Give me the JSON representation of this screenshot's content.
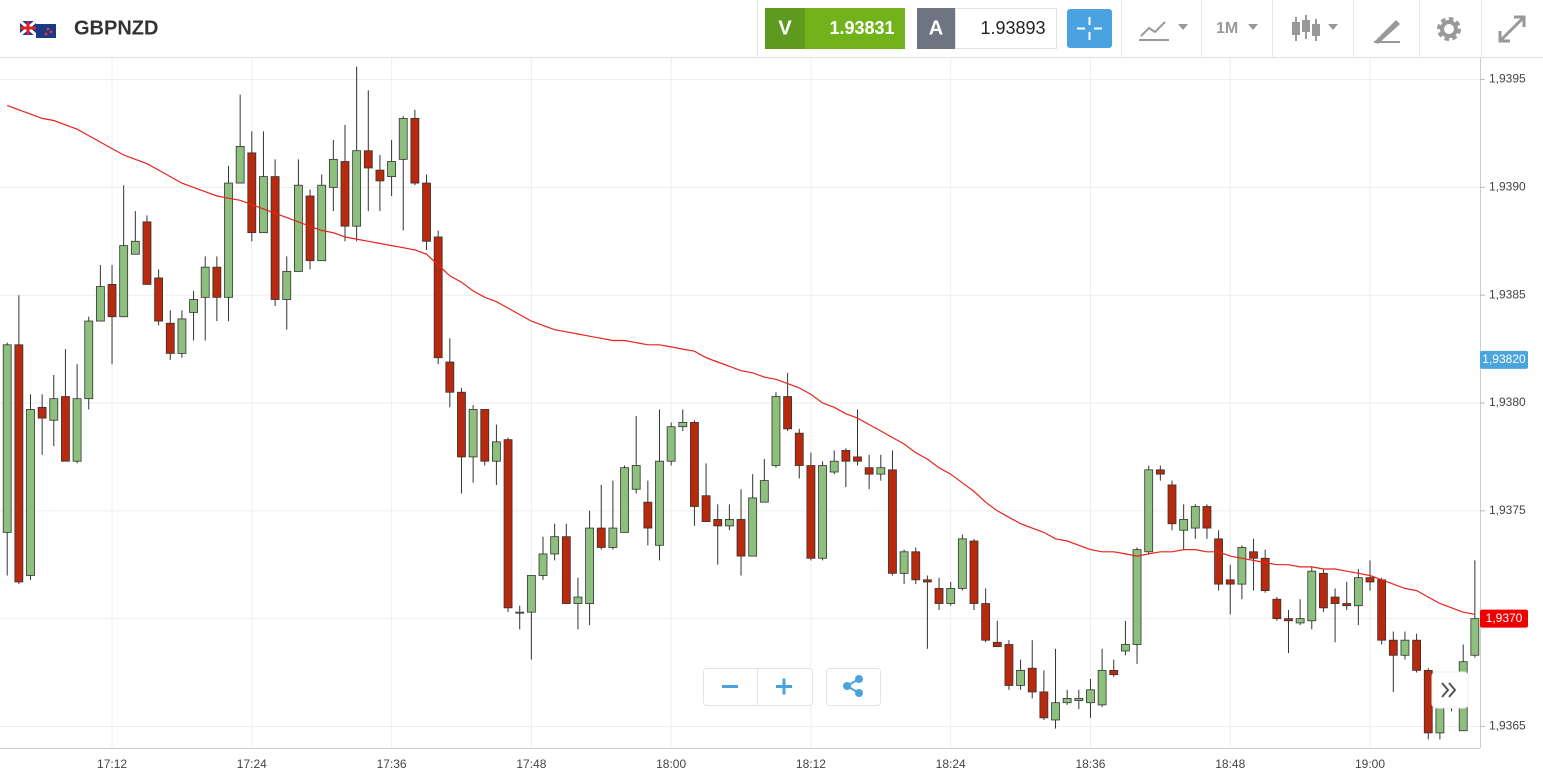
{
  "toolbar": {
    "symbol": "GBPNZD",
    "sell_label": "V",
    "sell_price": "1.93831",
    "buy_label": "A",
    "buy_price": "1.93893",
    "timeframe": "1M"
  },
  "chart_data": {
    "type": "candlestick",
    "categories": [
      null,
      null,
      null,
      null,
      null,
      null,
      null,
      null,
      null,
      "17:12",
      null,
      null,
      null,
      null,
      null,
      null,
      null,
      null,
      null,
      null,
      null,
      "17:24",
      null,
      null,
      null,
      null,
      null,
      null,
      null,
      null,
      null,
      null,
      null,
      "17:36",
      null,
      null,
      null,
      null,
      null,
      null,
      null,
      null,
      null,
      null,
      null,
      "17:48",
      null,
      null,
      null,
      null,
      null,
      null,
      null,
      null,
      null,
      null,
      null,
      "18:00",
      null,
      null,
      null,
      null,
      null,
      null,
      null,
      null,
      null,
      null,
      null,
      "18:12",
      null,
      null,
      null,
      null,
      null,
      null,
      null,
      null,
      null,
      null,
      null,
      "18:24",
      null,
      null,
      null,
      null,
      null,
      null,
      null,
      null,
      null,
      null,
      null,
      "18:36",
      null,
      null,
      null,
      null,
      null,
      null,
      null,
      null,
      null,
      null,
      null,
      "18:48",
      null,
      null,
      null,
      null,
      null,
      null,
      null,
      null,
      null,
      null,
      null,
      "19:00",
      null,
      null,
      null,
      null,
      null,
      null,
      null,
      null,
      null
    ],
    "open": [
      1.9374,
      1.93827,
      1.9372,
      1.93798,
      1.93792,
      1.93803,
      1.93773,
      1.93802,
      1.93838,
      1.93855,
      1.9384,
      1.93869,
      1.93884,
      1.93858,
      1.93837,
      1.93823,
      1.93842,
      1.93849,
      1.93863,
      1.93849,
      1.93902,
      1.93916,
      1.93879,
      1.93905,
      1.93848,
      1.93861,
      1.93896,
      1.93866,
      1.939,
      1.93912,
      1.93882,
      1.93917,
      1.93908,
      1.93905,
      1.93913,
      1.93932,
      1.93902,
      1.93877,
      1.93819,
      1.93805,
      1.93775,
      1.93797,
      1.93773,
      1.93783,
      1.93703,
      1.93703,
      1.9372,
      1.9373,
      1.93738,
      1.93707,
      1.93707,
      1.93742,
      1.93733,
      1.9374,
      1.9376,
      1.93754,
      1.93734,
      1.93773,
      1.93789,
      1.93791,
      1.93757,
      1.93746,
      1.93743,
      1.93746,
      1.93729,
      1.93754,
      1.93771,
      1.93803,
      1.93786,
      1.93771,
      1.93728,
      1.93768,
      1.93778,
      1.93775,
      1.9377,
      1.93767,
      1.93769,
      1.93721,
      1.93731,
      1.93718,
      1.93714,
      1.93707,
      1.93714,
      1.93736,
      1.93707,
      1.93689,
      1.93688,
      1.93669,
      1.93677,
      1.93666,
      1.93653,
      1.93661,
      1.93662,
      1.93661,
      1.9366,
      1.93676,
      1.93685,
      1.93688,
      1.93731,
      1.93769,
      1.93762,
      1.93741,
      1.93742,
      1.93752,
      1.93737,
      1.93718,
      1.93716,
      1.93731,
      1.93728,
      1.93709,
      1.937,
      1.93698,
      1.93699,
      1.93721,
      1.9371,
      1.93707,
      1.93706,
      1.93719,
      1.93718,
      1.9369,
      1.93683,
      1.9369,
      1.93676,
      1.93647,
      1.93661,
      1.93648,
      1.93683
    ],
    "high": [
      1.93828,
      1.9385,
      1.93804,
      1.93804,
      1.93813,
      1.93825,
      1.93818,
      1.9384,
      1.93864,
      1.93864,
      1.93901,
      1.93889,
      1.93887,
      1.93862,
      1.93843,
      1.93843,
      1.93852,
      1.93868,
      1.93868,
      1.9391,
      1.93943,
      1.93926,
      1.93926,
      1.93913,
      1.93868,
      1.93913,
      1.93899,
      1.93906,
      1.93922,
      1.93929,
      1.93956,
      1.93945,
      1.93915,
      1.93922,
      1.93933,
      1.93936,
      1.93906,
      1.9388,
      1.9383,
      1.93807,
      1.93799,
      1.93797,
      1.9379,
      1.93784,
      1.93706,
      1.9372,
      1.93738,
      1.93744,
      1.93744,
      1.93719,
      1.9375,
      1.93762,
      1.93764,
      1.93771,
      1.93794,
      1.93764,
      1.93797,
      1.93791,
      1.93797,
      1.93792,
      1.93772,
      1.93753,
      1.93753,
      1.9376,
      1.93767,
      1.93774,
      1.93805,
      1.93814,
      1.93788,
      1.93777,
      1.93773,
      1.93778,
      1.93779,
      1.93797,
      1.93776,
      1.93776,
      1.93778,
      1.93732,
      1.93733,
      1.9372,
      1.93719,
      1.93717,
      1.93739,
      1.93737,
      1.93714,
      1.93699,
      1.9369,
      1.93681,
      1.9369,
      1.93676,
      1.93686,
      1.93667,
      1.93667,
      1.93672,
      1.93686,
      1.93681,
      1.93699,
      1.93733,
      1.93771,
      1.93771,
      1.93764,
      1.93753,
      1.93753,
      1.93753,
      1.93741,
      1.93725,
      1.93734,
      1.93737,
      1.93732,
      1.9371,
      1.93704,
      1.93709,
      1.93724,
      1.93723,
      1.93714,
      1.93717,
      1.93723,
      1.93727,
      1.93719,
      1.93694,
      1.93694,
      1.93693,
      1.93677,
      1.93665,
      1.93674,
      1.93688,
      1.93727
    ],
    "low": [
      1.9372,
      1.93716,
      1.93718,
      1.93776,
      1.9378,
      1.93773,
      1.93772,
      1.93797,
      1.93838,
      1.93818,
      1.9384,
      1.93869,
      1.93855,
      1.93836,
      1.9382,
      1.93821,
      1.93829,
      1.93829,
      1.93838,
      1.93838,
      1.93902,
      1.93875,
      1.93879,
      1.93845,
      1.93834,
      1.93861,
      1.93862,
      1.93866,
      1.93889,
      1.93875,
      1.93875,
      1.93889,
      1.93889,
      1.93896,
      1.9388,
      1.93901,
      1.93871,
      1.93818,
      1.93798,
      1.93758,
      1.93763,
      1.93771,
      1.93762,
      1.93703,
      1.93695,
      1.93681,
      1.93718,
      1.93727,
      1.93707,
      1.93695,
      1.93697,
      1.93732,
      1.93732,
      1.9374,
      1.93758,
      1.93734,
      1.93727,
      1.93771,
      1.93787,
      1.93743,
      1.93745,
      1.93725,
      1.93741,
      1.9372,
      1.93729,
      1.93754,
      1.9377,
      1.93787,
      1.93765,
      1.93727,
      1.93727,
      1.93767,
      1.93761,
      1.93771,
      1.9376,
      1.93764,
      1.9372,
      1.93716,
      1.93716,
      1.93686,
      1.93704,
      1.93706,
      1.93713,
      1.93704,
      1.93689,
      1.93687,
      1.93667,
      1.93667,
      1.93663,
      1.93653,
      1.93649,
      1.9366,
      1.93658,
      1.93654,
      1.93659,
      1.93673,
      1.93683,
      1.93679,
      1.9373,
      1.93764,
      1.93741,
      1.93732,
      1.93737,
      1.93737,
      1.93713,
      1.93702,
      1.93709,
      1.93713,
      1.93712,
      1.93699,
      1.93684,
      1.93697,
      1.93695,
      1.93703,
      1.93689,
      1.93704,
      1.93697,
      1.93713,
      1.93688,
      1.93666,
      1.93681,
      1.93675,
      1.93644,
      1.93644,
      1.93657,
      1.93648,
      1.93682
    ],
    "close": [
      1.93827,
      1.93717,
      1.93797,
      1.93793,
      1.93802,
      1.93773,
      1.93802,
      1.93838,
      1.93854,
      1.9384,
      1.93873,
      1.93875,
      1.93855,
      1.93838,
      1.93823,
      1.93839,
      1.93848,
      1.93863,
      1.93849,
      1.93902,
      1.93919,
      1.93879,
      1.93905,
      1.93848,
      1.93861,
      1.93901,
      1.93866,
      1.93901,
      1.93913,
      1.93882,
      1.93917,
      1.93909,
      1.93903,
      1.93912,
      1.93932,
      1.93902,
      1.93875,
      1.93821,
      1.93805,
      1.93775,
      1.93797,
      1.93773,
      1.93782,
      1.93705,
      1.93703,
      1.9372,
      1.9373,
      1.93738,
      1.93707,
      1.9371,
      1.93742,
      1.93733,
      1.93742,
      1.9377,
      1.93771,
      1.93742,
      1.93773,
      1.93789,
      1.93791,
      1.93752,
      1.93745,
      1.93743,
      1.93746,
      1.93729,
      1.93756,
      1.93764,
      1.93803,
      1.93788,
      1.93771,
      1.93728,
      1.93771,
      1.93773,
      1.93773,
      1.93773,
      1.93767,
      1.9377,
      1.93721,
      1.93731,
      1.93718,
      1.93717,
      1.93707,
      1.93714,
      1.93737,
      1.93707,
      1.9369,
      1.93687,
      1.93669,
      1.93676,
      1.93666,
      1.93654,
      1.93661,
      1.93663,
      1.93663,
      1.93667,
      1.93676,
      1.93674,
      1.93688,
      1.93732,
      1.93769,
      1.93767,
      1.93744,
      1.93746,
      1.93752,
      1.93742,
      1.93716,
      1.93716,
      1.93733,
      1.93728,
      1.93713,
      1.937,
      1.93699,
      1.937,
      1.93722,
      1.93705,
      1.93707,
      1.93706,
      1.93719,
      1.93717,
      1.9369,
      1.93683,
      1.9369,
      1.93676,
      1.93647,
      1.9366,
      1.93671,
      1.9368,
      1.937
    ],
    "up_color": "#8cc07c",
    "down_color": "#b8290e",
    "ma": {
      "color": "#e8231b",
      "values": [
        1.93938,
        1.93936,
        1.93934,
        1.93932,
        1.93931,
        1.93929,
        1.93927,
        1.93924,
        1.93921,
        1.93918,
        1.93915,
        1.93913,
        1.93911,
        1.93908,
        1.93905,
        1.93902,
        1.939,
        1.93898,
        1.93896,
        1.93895,
        1.93894,
        1.93892,
        1.9389,
        1.93888,
        1.93886,
        1.93884,
        1.93882,
        1.9388,
        1.93879,
        1.93877,
        1.93876,
        1.93875,
        1.93874,
        1.93873,
        1.93872,
        1.93871,
        1.93869,
        1.93864,
        1.93859,
        1.93856,
        1.93852,
        1.93849,
        1.93847,
        1.93844,
        1.93841,
        1.93838,
        1.93836,
        1.93834,
        1.93833,
        1.93832,
        1.93831,
        1.9383,
        1.93829,
        1.93829,
        1.93828,
        1.93827,
        1.93827,
        1.93826,
        1.93825,
        1.93824,
        1.93821,
        1.93819,
        1.93817,
        1.93815,
        1.93814,
        1.93812,
        1.93811,
        1.93809,
        1.93807,
        1.93804,
        1.938,
        1.93798,
        1.93795,
        1.93793,
        1.9379,
        1.93787,
        1.93784,
        1.93781,
        1.93777,
        1.93774,
        1.9377,
        1.93767,
        1.93763,
        1.93759,
        1.93754,
        1.9375,
        1.93747,
        1.93744,
        1.93742,
        1.9374,
        1.93737,
        1.93736,
        1.93734,
        1.93732,
        1.93731,
        1.93731,
        1.9373,
        1.93729,
        1.9373,
        1.93731,
        1.93731,
        1.93732,
        1.93732,
        1.93731,
        1.93731,
        1.93729,
        1.93728,
        1.93727,
        1.93726,
        1.93725,
        1.93725,
        1.93724,
        1.93724,
        1.93723,
        1.93723,
        1.93722,
        1.93721,
        1.9372,
        1.93718,
        1.93716,
        1.93714,
        1.93713,
        1.9371,
        1.93707,
        1.93705,
        1.93703,
        1.93702
      ]
    },
    "price_markers": [
      {
        "value": 1.9382,
        "label": "1,93820",
        "color": "#4ba4dc"
      },
      {
        "value": 1.937,
        "label": "1,9370",
        "color": "#ee0000"
      }
    ],
    "ylim": [
      1.9364,
      1.9396
    ],
    "yticks": [
      {
        "value": 1.9365,
        "label": "1,9365"
      },
      {
        "value": 1.937,
        "label": "1,9370"
      },
      {
        "value": 1.9375,
        "label": "1,9375"
      },
      {
        "value": 1.938,
        "label": "1,9380"
      },
      {
        "value": 1.9385,
        "label": "1,9385"
      },
      {
        "value": 1.939,
        "label": "1,9390"
      },
      {
        "value": 1.9395,
        "label": "1,9395"
      }
    ],
    "grid": true
  }
}
